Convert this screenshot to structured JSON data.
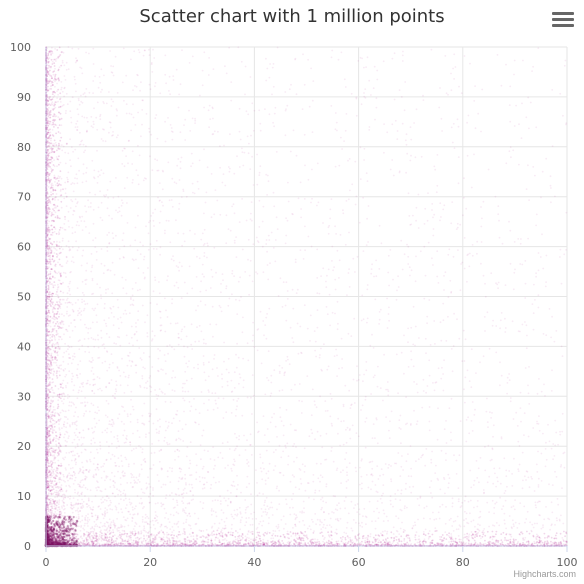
{
  "menu": {
    "icon": "hamburger-menu-icon"
  },
  "credits": {
    "label": "Highcharts.com"
  },
  "chart_data": {
    "type": "scatter",
    "title": "Scatter chart with 1 million points",
    "xlim": [
      0,
      100
    ],
    "ylim": [
      0,
      100
    ],
    "x_ticks": [
      0,
      20,
      40,
      60,
      80,
      100
    ],
    "y_ticks": [
      0,
      10,
      20,
      30,
      40,
      50,
      60,
      70,
      80,
      90,
      100
    ],
    "grid": true,
    "legend": "none",
    "series": [
      {
        "color": "#b2238f",
        "point_count": 1000000,
        "density": "concentrated near x=0 and y=0, sparse toward the upper-right"
      }
    ]
  }
}
